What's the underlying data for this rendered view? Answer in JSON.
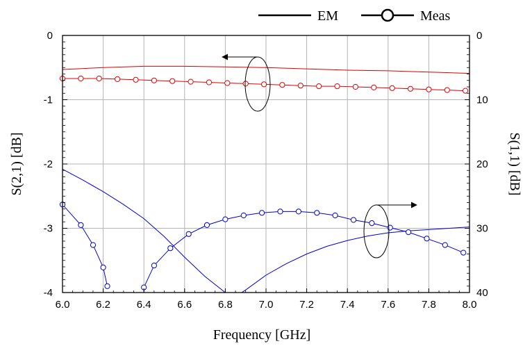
{
  "chart_data": {
    "type": "line",
    "title": "",
    "xlabel": "Frequency [GHz]",
    "ylabel_left": "S(2,1) [dB]",
    "ylabel_right": "S(1,1) [dB]",
    "xlim": [
      6.0,
      8.0
    ],
    "ylim_left": [
      -4,
      0
    ],
    "ylim_right": [
      -40,
      0
    ],
    "x_ticks": [
      6.0,
      6.2,
      6.4,
      6.6,
      6.8,
      7.0,
      7.2,
      7.4,
      7.6,
      7.8,
      8.0
    ],
    "x_tick_labels": [
      "6.0",
      "6.2",
      "6.4",
      "6.6",
      "6.8",
      "7.0",
      "7.2",
      "7.4",
      "7.6",
      "7.8",
      "8.0"
    ],
    "y_left_ticks": [
      0,
      -1,
      -2,
      -3,
      -4
    ],
    "y_left_tick_labels": [
      "0",
      "-1",
      "-2",
      "-3",
      "-4"
    ],
    "y_right_ticks": [
      0,
      -10,
      -20,
      -30,
      -40
    ],
    "y_right_tick_labels": [
      "0",
      "10",
      "20",
      "30",
      "40"
    ],
    "grid": true,
    "legend": {
      "placement": "top-right",
      "entries": [
        {
          "label": "EM",
          "style": "line"
        },
        {
          "label": "Meas",
          "style": "line-circle"
        }
      ]
    },
    "colors": {
      "s21": "#e00000",
      "s11": "#0000cc",
      "grid": "#b4b4b4",
      "axis": "#000000"
    },
    "series": [
      {
        "name": "EM S(2,1)",
        "axis": "left",
        "color": "#e00000",
        "marker": "none",
        "x": [
          6.0,
          6.2,
          6.4,
          6.6,
          6.8,
          7.0,
          7.2,
          7.4,
          7.6,
          7.8,
          8.0
        ],
        "y": [
          -0.53,
          -0.5,
          -0.48,
          -0.48,
          -0.49,
          -0.5,
          -0.52,
          -0.54,
          -0.55,
          -0.57,
          -0.59
        ]
      },
      {
        "name": "Meas S(2,1)",
        "axis": "left",
        "color": "#e00000",
        "marker": "circle",
        "x": [
          6.0,
          6.09,
          6.18,
          6.27,
          6.36,
          6.45,
          6.54,
          6.63,
          6.72,
          6.81,
          6.9,
          6.99,
          7.08,
          7.17,
          7.26,
          7.35,
          7.44,
          7.53,
          7.62,
          7.71,
          7.8,
          7.89,
          7.98
        ],
        "y": [
          -0.67,
          -0.67,
          -0.67,
          -0.68,
          -0.69,
          -0.7,
          -0.71,
          -0.72,
          -0.73,
          -0.74,
          -0.75,
          -0.76,
          -0.77,
          -0.78,
          -0.79,
          -0.79,
          -0.8,
          -0.81,
          -0.82,
          -0.83,
          -0.84,
          -0.85,
          -0.86
        ]
      },
      {
        "name": "EM S(1,1)",
        "axis": "right",
        "color": "#0000cc",
        "marker": "none",
        "x": [
          6.0,
          6.1,
          6.2,
          6.3,
          6.4,
          6.5,
          6.6,
          6.7,
          6.8,
          6.82,
          null,
          6.88,
          6.9,
          7.0,
          7.1,
          7.2,
          7.3,
          7.4,
          7.5,
          7.6,
          7.7,
          7.8,
          7.9,
          8.0
        ],
        "y": [
          -20.8,
          -22.5,
          -24.3,
          -26.3,
          -28.5,
          -31.3,
          -34.5,
          -37.5,
          -40.0,
          -40.0,
          null,
          -40.0,
          -39.6,
          -37.3,
          -35.5,
          -34.0,
          -32.8,
          -31.9,
          -31.2,
          -30.7,
          -30.4,
          -30.2,
          -30.0,
          -29.8
        ]
      },
      {
        "name": "Meas S(1,1)",
        "axis": "right",
        "color": "#0000cc",
        "marker": "circle",
        "x": [
          6.0,
          6.09,
          6.15,
          6.2,
          6.22,
          null,
          6.4,
          6.45,
          6.53,
          6.62,
          6.71,
          6.8,
          6.89,
          6.98,
          7.07,
          7.16,
          7.25,
          7.34,
          7.43,
          7.52,
          7.61,
          7.7,
          7.79,
          7.88,
          7.97
        ],
        "y": [
          -26.3,
          -29.5,
          -32.6,
          -36.1,
          -39.0,
          null,
          -39.2,
          -35.8,
          -33.1,
          -30.9,
          -29.5,
          -28.6,
          -28.0,
          -27.6,
          -27.4,
          -27.4,
          -27.6,
          -28.0,
          -28.7,
          -29.2,
          -29.9,
          -30.6,
          -31.6,
          -32.6,
          -33.8
        ]
      }
    ],
    "annotations": [
      {
        "type": "ellipse-arrow",
        "target": "S(2,1) curves",
        "arrow_direction": "left"
      },
      {
        "type": "ellipse-arrow",
        "target": "S(1,1) curves",
        "arrow_direction": "right"
      }
    ]
  }
}
